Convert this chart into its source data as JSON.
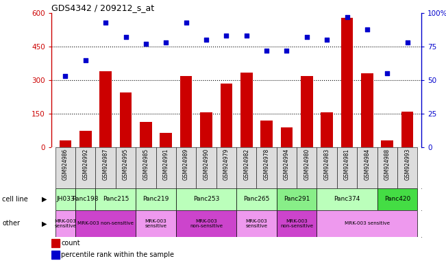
{
  "title": "GDS4342 / 209212_s_at",
  "gsm_labels": [
    "GSM924986",
    "GSM924992",
    "GSM924987",
    "GSM924995",
    "GSM924985",
    "GSM924991",
    "GSM924989",
    "GSM924990",
    "GSM924979",
    "GSM924982",
    "GSM924978",
    "GSM924994",
    "GSM924980",
    "GSM924983",
    "GSM924981",
    "GSM924984",
    "GSM924988",
    "GSM924993"
  ],
  "counts": [
    30,
    75,
    340,
    245,
    115,
    65,
    320,
    155,
    285,
    335,
    120,
    90,
    320,
    155,
    580,
    330,
    30,
    160
  ],
  "percentiles": [
    53,
    65,
    93,
    82,
    77,
    78,
    93,
    80,
    83,
    83,
    72,
    72,
    82,
    80,
    97,
    88,
    55,
    78
  ],
  "bar_color": "#cc0000",
  "dot_color": "#0000cc",
  "ylim_left": [
    0,
    600
  ],
  "ylim_right": [
    0,
    100
  ],
  "yticks_left": [
    0,
    150,
    300,
    450,
    600
  ],
  "yticks_right": [
    0,
    25,
    50,
    75,
    100
  ],
  "cell_lines": [
    {
      "label": "JH033",
      "start": 0,
      "end": 1,
      "color": "#bbffbb"
    },
    {
      "label": "Panc198",
      "start": 1,
      "end": 2,
      "color": "#bbffbb"
    },
    {
      "label": "Panc215",
      "start": 2,
      "end": 4,
      "color": "#bbffbb"
    },
    {
      "label": "Panc219",
      "start": 4,
      "end": 6,
      "color": "#bbffbb"
    },
    {
      "label": "Panc253",
      "start": 6,
      "end": 9,
      "color": "#bbffbb"
    },
    {
      "label": "Panc265",
      "start": 9,
      "end": 11,
      "color": "#bbffbb"
    },
    {
      "label": "Panc291",
      "start": 11,
      "end": 13,
      "color": "#88ee88"
    },
    {
      "label": "Panc374",
      "start": 13,
      "end": 16,
      "color": "#bbffbb"
    },
    {
      "label": "Panc420",
      "start": 16,
      "end": 18,
      "color": "#44dd44"
    }
  ],
  "other_groups": [
    {
      "label": "MRK-003\nsensitive",
      "start": 0,
      "end": 1,
      "color": "#ee99ee"
    },
    {
      "label": "MRK-003 non-sensitive",
      "start": 1,
      "end": 4,
      "color": "#cc44cc"
    },
    {
      "label": "MRK-003\nsensitive",
      "start": 4,
      "end": 6,
      "color": "#ee99ee"
    },
    {
      "label": "MRK-003\nnon-sensitive",
      "start": 6,
      "end": 9,
      "color": "#cc44cc"
    },
    {
      "label": "MRK-003\nsensitive",
      "start": 9,
      "end": 11,
      "color": "#ee99ee"
    },
    {
      "label": "MRK-003\nnon-sensitive",
      "start": 11,
      "end": 13,
      "color": "#cc44cc"
    },
    {
      "label": "MRK-003 sensitive",
      "start": 13,
      "end": 18,
      "color": "#ee99ee"
    }
  ],
  "legend_count_label": "count",
  "legend_pct_label": "percentile rank within the sample",
  "bg_color": "#ffffff",
  "left_axis_color": "#cc0000",
  "right_axis_color": "#0000cc",
  "xtick_bg_color": "#dddddd"
}
